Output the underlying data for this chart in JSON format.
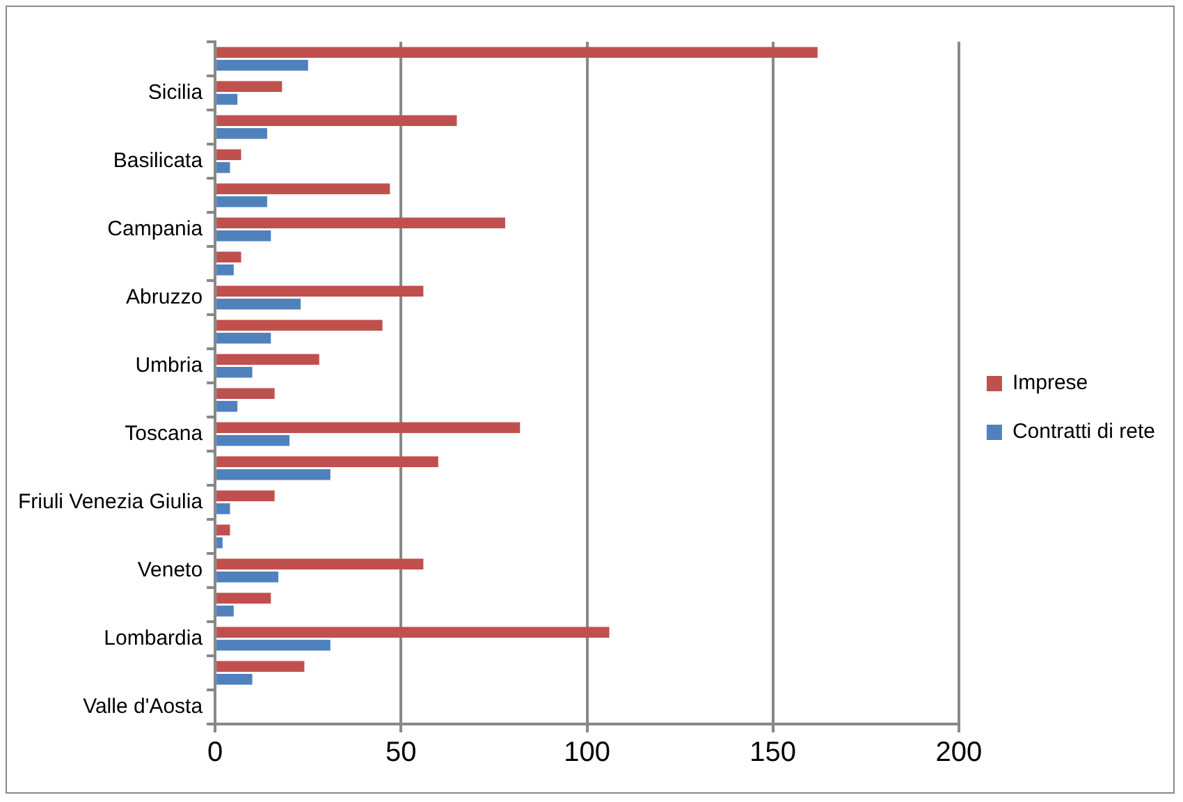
{
  "chart_data": {
    "type": "bar",
    "orientation": "horizontal",
    "categories": [
      null,
      "Sicilia",
      null,
      "Basilicata",
      null,
      "Campania",
      null,
      "Abruzzo",
      null,
      "Umbria",
      null,
      "Toscana",
      null,
      "Friuli Venezia Giulia",
      null,
      "Veneto",
      null,
      "Lombardia",
      null,
      "Valle d'Aosta"
    ],
    "series": [
      {
        "name": "Imprese",
        "color": "#c0504d",
        "values": [
          162,
          18,
          65,
          7,
          47,
          78,
          7,
          56,
          45,
          28,
          16,
          82,
          60,
          16,
          4,
          56,
          15,
          106,
          24,
          0
        ]
      },
      {
        "name": "Contratti di rete",
        "color": "#4f81bd",
        "values": [
          25,
          6,
          14,
          4,
          14,
          15,
          5,
          23,
          15,
          10,
          6,
          20,
          31,
          4,
          2,
          17,
          5,
          31,
          10,
          0
        ]
      }
    ],
    "xlim": [
      0,
      200
    ],
    "xticks": [
      0,
      50,
      100,
      150,
      200
    ],
    "grid": "x",
    "legend": "right"
  }
}
